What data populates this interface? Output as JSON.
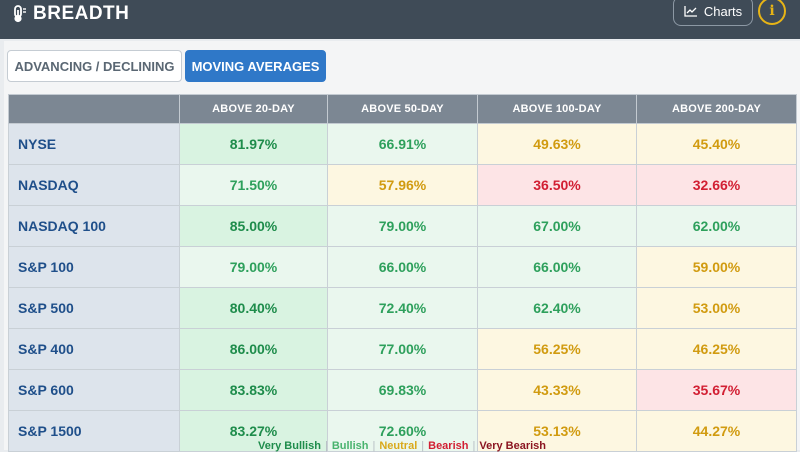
{
  "header": {
    "title": "BREADTH",
    "charts_label": "Charts",
    "info_label": "i",
    "colors": {
      "bar": "#3f4b57",
      "info": "#e7b416"
    }
  },
  "tabs": [
    {
      "label": "ADVANCING / DECLINING",
      "active": false
    },
    {
      "label": "MOVING AVERAGES",
      "active": true
    }
  ],
  "table": {
    "columns": [
      "",
      "ABOVE 20-DAY",
      "ABOVE 50-DAY",
      "ABOVE 100-DAY",
      "ABOVE 200-DAY"
    ],
    "rows": [
      {
        "index": "NYSE",
        "cells": [
          {
            "v": "81.97%",
            "s": "vbull"
          },
          {
            "v": "66.91%",
            "s": "bull"
          },
          {
            "v": "49.63%",
            "s": "neut"
          },
          {
            "v": "45.40%",
            "s": "neut"
          }
        ]
      },
      {
        "index": "NASDAQ",
        "cells": [
          {
            "v": "71.50%",
            "s": "bull"
          },
          {
            "v": "57.96%",
            "s": "neut"
          },
          {
            "v": "36.50%",
            "s": "bear"
          },
          {
            "v": "32.66%",
            "s": "bear"
          }
        ]
      },
      {
        "index": "NASDAQ 100",
        "cells": [
          {
            "v": "85.00%",
            "s": "vbull"
          },
          {
            "v": "79.00%",
            "s": "bull"
          },
          {
            "v": "67.00%",
            "s": "bull"
          },
          {
            "v": "62.00%",
            "s": "bull"
          }
        ]
      },
      {
        "index": "S&P 100",
        "cells": [
          {
            "v": "79.00%",
            "s": "bull"
          },
          {
            "v": "66.00%",
            "s": "bull"
          },
          {
            "v": "66.00%",
            "s": "bull"
          },
          {
            "v": "59.00%",
            "s": "neut"
          }
        ]
      },
      {
        "index": "S&P 500",
        "cells": [
          {
            "v": "80.40%",
            "s": "vbull"
          },
          {
            "v": "72.40%",
            "s": "bull"
          },
          {
            "v": "62.40%",
            "s": "bull"
          },
          {
            "v": "53.00%",
            "s": "neut"
          }
        ]
      },
      {
        "index": "S&P 400",
        "cells": [
          {
            "v": "86.00%",
            "s": "vbull"
          },
          {
            "v": "77.00%",
            "s": "bull"
          },
          {
            "v": "56.25%",
            "s": "neut"
          },
          {
            "v": "46.25%",
            "s": "neut"
          }
        ]
      },
      {
        "index": "S&P 600",
        "cells": [
          {
            "v": "83.83%",
            "s": "vbull"
          },
          {
            "v": "69.83%",
            "s": "bull"
          },
          {
            "v": "43.33%",
            "s": "neut"
          },
          {
            "v": "35.67%",
            "s": "bear"
          }
        ]
      },
      {
        "index": "S&P 1500",
        "cells": [
          {
            "v": "83.27%",
            "s": "vbull"
          },
          {
            "v": "72.60%",
            "s": "bull"
          },
          {
            "v": "53.13%",
            "s": "neut"
          },
          {
            "v": "44.27%",
            "s": "neut"
          }
        ]
      }
    ]
  },
  "legend": [
    {
      "label": "Very Bullish",
      "s": "vbull"
    },
    {
      "label": "Bullish",
      "s": "bull"
    },
    {
      "label": "Neutral",
      "s": "neut"
    },
    {
      "label": "Bearish",
      "s": "bear"
    },
    {
      "label": "Very Bearish",
      "s": "vbear"
    }
  ],
  "icons": {
    "brand": "thermometer-icon",
    "charts": "line-chart-icon",
    "info": "info-icon"
  }
}
